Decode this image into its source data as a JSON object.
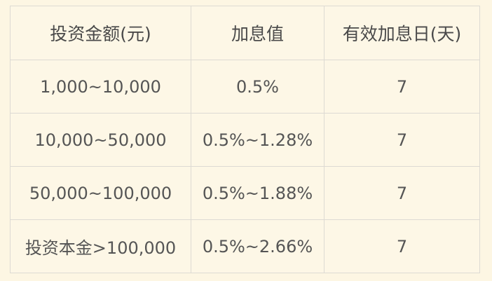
{
  "table": {
    "headers": [
      "投资金额(元)",
      "加息值",
      "有效加息日(天)"
    ],
    "rows": [
      {
        "amount": "1,000~10,000",
        "rate": "0.5%",
        "days": "7"
      },
      {
        "amount": "10,000~50,000",
        "rate": "0.5%~1.28%",
        "days": "7"
      },
      {
        "amount": "50,000~100,000",
        "rate": "0.5%~1.88%",
        "days": "7"
      },
      {
        "amount": "投资本金>100,000",
        "rate": "0.5%~2.66%",
        "days": "7"
      }
    ]
  },
  "colors": {
    "background": "#fdf6e3",
    "border": "#dddad3",
    "text": "#4a4a4a"
  }
}
